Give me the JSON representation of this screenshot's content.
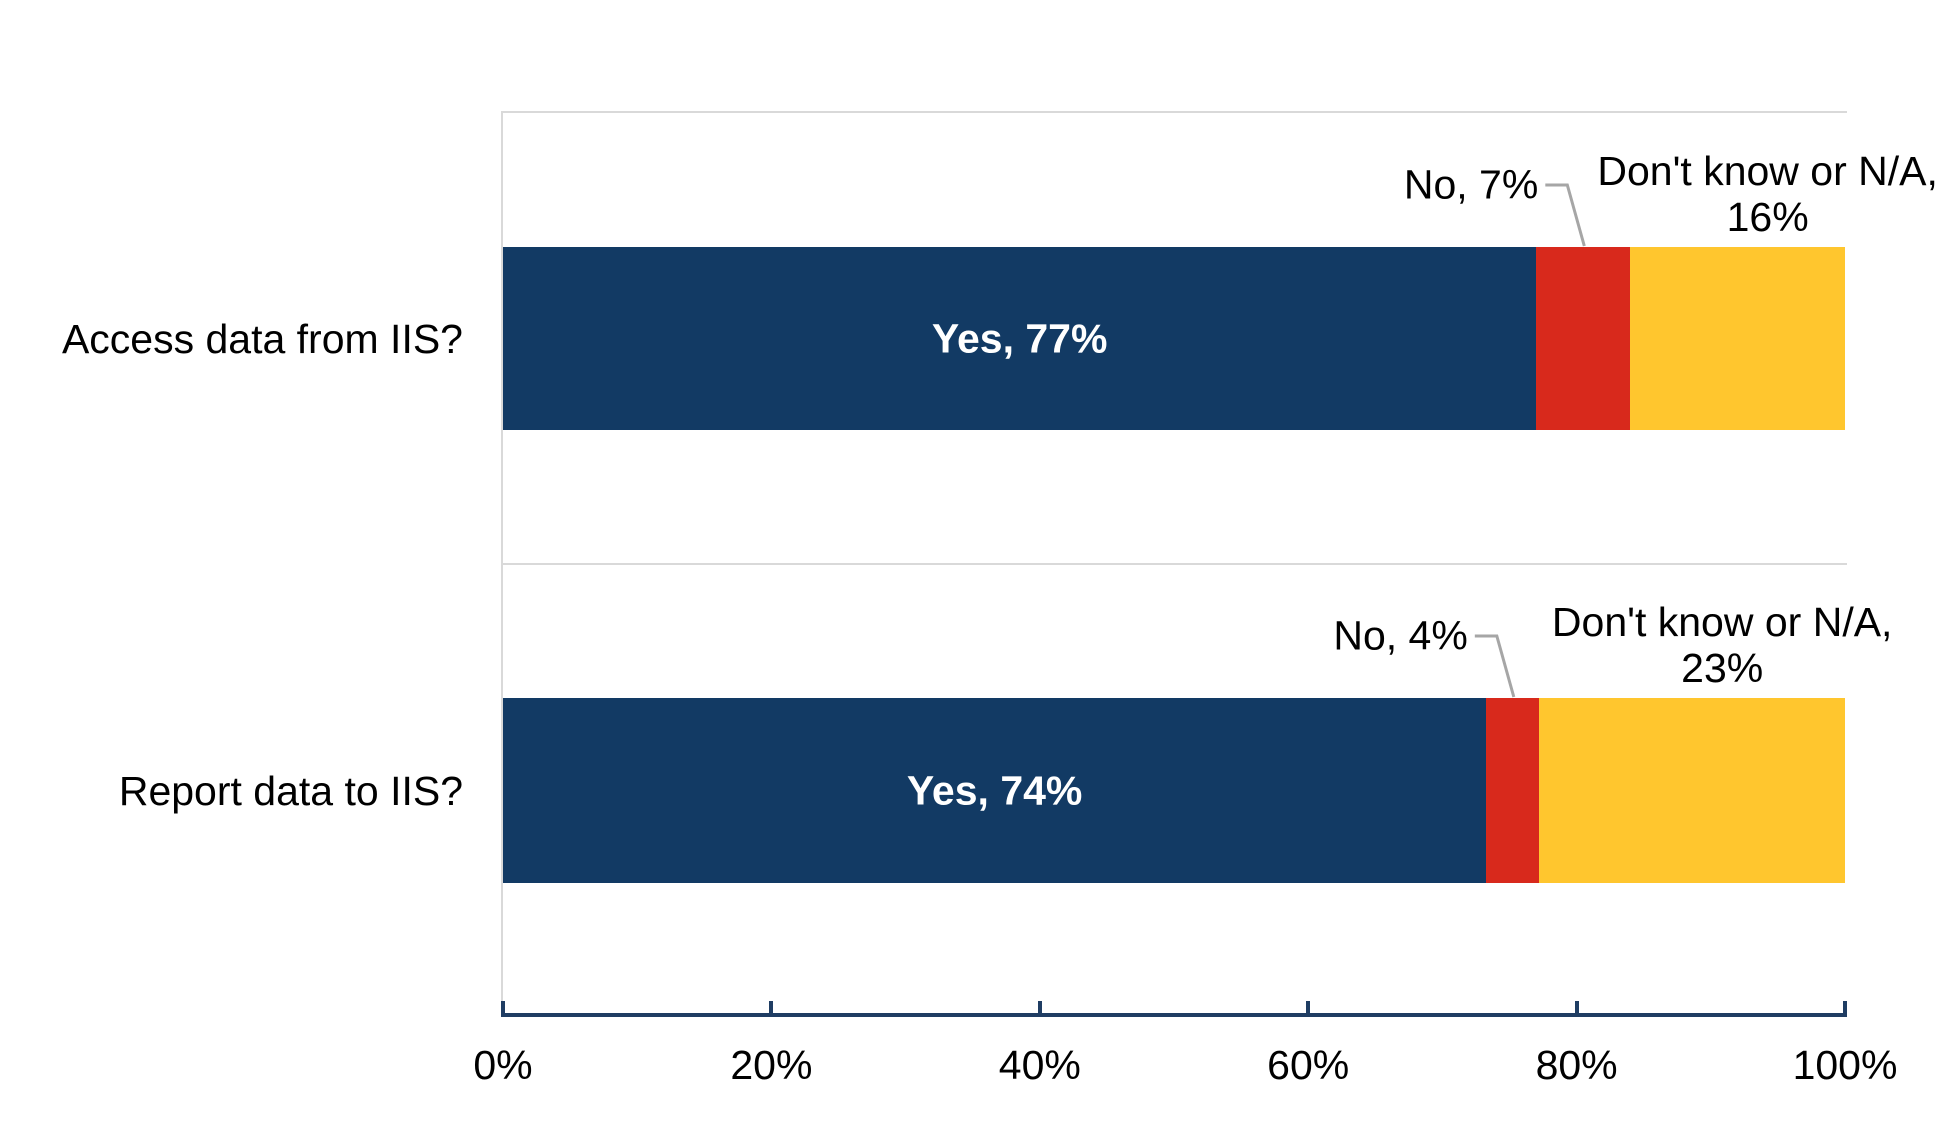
{
  "chart_data": {
    "type": "bar",
    "orientation": "horizontal",
    "stacked": true,
    "title": "",
    "categories": [
      "Access data from IIS?",
      "Report data to IIS?"
    ],
    "series": [
      {
        "name": "Yes",
        "color": "#123A64",
        "values": [
          77,
          74
        ]
      },
      {
        "name": "No",
        "color": "#D8291C",
        "values": [
          7,
          4
        ]
      },
      {
        "name": "Don't know or N/A",
        "color": "#FFC62E",
        "values": [
          16,
          23
        ]
      }
    ],
    "x_axis": {
      "min": 0,
      "max": 100,
      "tick_labels": [
        "0%",
        "20%",
        "40%",
        "60%",
        "80%",
        "100%"
      ]
    },
    "data_labels": [
      {
        "yes": "Yes, 77%",
        "no": "No, 7%",
        "dk_line1": "Don't know or N/A,",
        "dk_line2": "16%"
      },
      {
        "yes": "Yes, 74%",
        "no": "No, 4%",
        "dk_line1": "Don't know or N/A,",
        "dk_line2": "23%"
      }
    ],
    "legend": "none",
    "grid": "category-boundaries-only",
    "colors": {
      "axis": "#1F3D63",
      "gridline": "#D9D9D9",
      "leader_line": "#A6A6A6",
      "background": "#FFFFFF",
      "label_text": "#000000",
      "yes_label_text": "#FFFFFF"
    }
  }
}
